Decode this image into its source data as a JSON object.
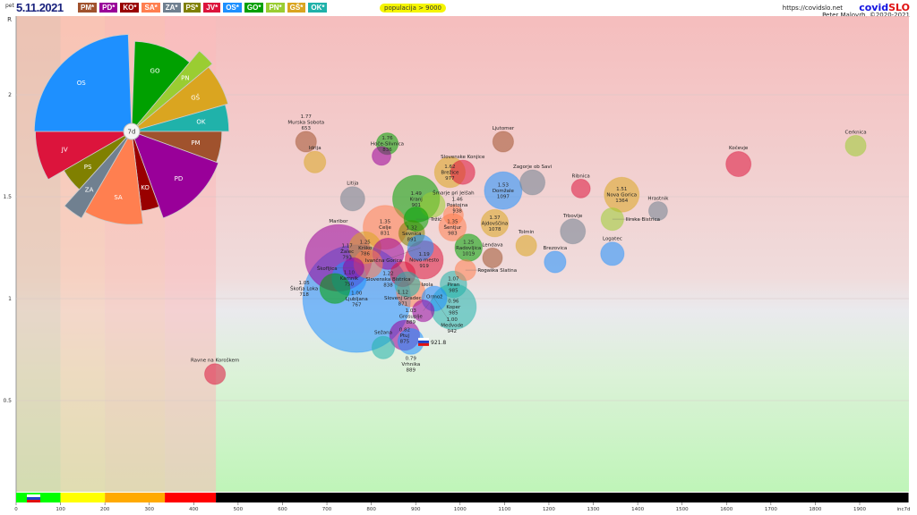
{
  "header": {
    "date_prefix": "pet",
    "date": "5.11.2021",
    "population_filter": "populacija > 9000",
    "url": "https://covidslo.net",
    "logo_a": "covid",
    "logo_b": "SLO",
    "author": "Peter Malovrh, ©2020-2021"
  },
  "parties": [
    {
      "code": "PM",
      "label": "PM*",
      "color": "#a0522d"
    },
    {
      "code": "PD",
      "label": "PD*",
      "color": "#990099"
    },
    {
      "code": "KO",
      "label": "KO*",
      "color": "#990000"
    },
    {
      "code": "SA",
      "label": "SA*",
      "color": "#ff7f50"
    },
    {
      "code": "ZA",
      "label": "ZA*",
      "color": "#708090"
    },
    {
      "code": "PS",
      "label": "PS*",
      "color": "#808000"
    },
    {
      "code": "JV",
      "label": "JV*",
      "color": "#dc143c"
    },
    {
      "code": "OS",
      "label": "OS*",
      "color": "#1e90ff"
    },
    {
      "code": "GO",
      "label": "GO*",
      "color": "#00a000"
    },
    {
      "code": "PN",
      "label": "PN*",
      "color": "#9acd32"
    },
    {
      "code": "GŠ",
      "label": "GŠ*",
      "color": "#daa520"
    },
    {
      "code": "OK",
      "label": "OK*",
      "color": "#20b2aa"
    }
  ],
  "pie": {
    "center_label": "7d",
    "sectors": [
      {
        "code": "GO",
        "start": 2,
        "end": 40,
        "radius": 0.9
      },
      {
        "code": "PN",
        "start": 40,
        "end": 50,
        "radius": 1.05
      },
      {
        "code": "GŠ",
        "start": 50,
        "end": 74,
        "radius": 1.0
      },
      {
        "code": "OK",
        "start": 74,
        "end": 90,
        "radius": 0.97
      },
      {
        "code": "PM",
        "start": 90,
        "end": 110,
        "radius": 0.9
      },
      {
        "code": "PD",
        "start": 110,
        "end": 160,
        "radius": 0.92
      },
      {
        "code": "KO",
        "start": 160,
        "end": 173,
        "radius": 0.8
      },
      {
        "code": "SA",
        "start": 173,
        "end": 210,
        "radius": 0.93
      },
      {
        "code": "ZA",
        "start": 210,
        "end": 222,
        "radius": 1.0
      },
      {
        "code": "PS",
        "start": 222,
        "end": 240,
        "radius": 0.78
      },
      {
        "code": "JV",
        "start": 240,
        "end": 270,
        "radius": 0.96
      },
      {
        "code": "OS",
        "start": 270,
        "end": 358,
        "radius": 0.97
      }
    ]
  },
  "chart_data": {
    "type": "scatter",
    "xlabel": "inc7d",
    "ylabel": "R",
    "xlim": [
      0,
      2010
    ],
    "ylim": [
      0,
      2.39
    ],
    "xticks": [
      0,
      100,
      200,
      300,
      400,
      500,
      600,
      700,
      800,
      900,
      1000,
      1100,
      1200,
      1300,
      1400,
      1500,
      1600,
      1700,
      1800,
      1900
    ],
    "yticks": [
      0.5,
      1,
      1.5,
      2
    ],
    "bands": [
      {
        "from": 0,
        "to": 100,
        "color": "#00ff00",
        "bg": "#e3c6ab"
      },
      {
        "from": 100,
        "to": 200,
        "color": "#ffff00",
        "bg": "#fcc8ad"
      },
      {
        "from": 200,
        "to": 335,
        "color": "#ffaa00",
        "bg": "#fcc0b0"
      },
      {
        "from": 335,
        "to": 450,
        "color": "#ff0000",
        "bg": "#fbbcbc"
      },
      {
        "from": 450,
        "to": 2010,
        "color": "#000000",
        "bg": "#f5b8b8"
      }
    ],
    "national": {
      "label": "921.8",
      "x": 921.8,
      "r": 0.79
    },
    "points": [
      {
        "name": "Murska Sobota",
        "x": 653,
        "r": 1.77,
        "pop": 11,
        "party": "PM",
        "values": true
      },
      {
        "name": "Idrija",
        "x": 673,
        "r": 1.67,
        "pop": 12,
        "party": "GŠ"
      },
      {
        "name": "Hoče-Slivnica",
        "x": 836,
        "r": 1.76,
        "pop": 12,
        "party": "GO",
        "values": true
      },
      {
        "name": "",
        "x": 823,
        "r": 1.7,
        "pop": 9,
        "party": "PD"
      },
      {
        "name": "Litija",
        "x": 758,
        "r": 1.49,
        "pop": 15,
        "party": "ZA"
      },
      {
        "name": "Slovenske Konjice",
        "x": 1006,
        "r": 1.62,
        "pop": 15,
        "party": "JV"
      },
      {
        "name": "Brežice",
        "x": 977,
        "r": 1.62,
        "pop": 24,
        "party": "GŠ",
        "values": true
      },
      {
        "name": "Ljutomer",
        "x": 1097,
        "r": 1.77,
        "pop": 11,
        "party": "PM"
      },
      {
        "name": "Zagorje ob Savi",
        "x": 1163,
        "r": 1.57,
        "pop": 16,
        "party": "ZA"
      },
      {
        "name": "Domžale",
        "x": 1097,
        "r": 1.53,
        "pop": 36,
        "party": "OS",
        "values": true
      },
      {
        "name": "Ribnica",
        "x": 1272,
        "r": 1.54,
        "pop": 9,
        "party": "JV"
      },
      {
        "name": "Nova Gorica",
        "x": 1364,
        "r": 1.51,
        "pop": 31,
        "party": "GŠ",
        "values": true
      },
      {
        "name": "Ilirska Bistrica",
        "x": 1343,
        "r": 1.39,
        "pop": 13,
        "party": "PN"
      },
      {
        "name": "Hrastnik",
        "x": 1446,
        "r": 1.43,
        "pop": 9,
        "party": "ZA"
      },
      {
        "name": "Kočevje",
        "x": 1627,
        "r": 1.66,
        "pop": 16,
        "party": "JV"
      },
      {
        "name": "Cerknica",
        "x": 1891,
        "r": 1.75,
        "pop": 11,
        "party": "PN"
      },
      {
        "name": "Trbovlje",
        "x": 1254,
        "r": 1.33,
        "pop": 16,
        "party": "ZA"
      },
      {
        "name": "Logatec",
        "x": 1343,
        "r": 1.22,
        "pop": 14,
        "party": "OS"
      },
      {
        "name": "Tolmin",
        "x": 1149,
        "r": 1.26,
        "pop": 11,
        "party": "GŠ"
      },
      {
        "name": "Brezovica",
        "x": 1214,
        "r": 1.18,
        "pop": 12,
        "party": "OS"
      },
      {
        "name": "Lendava",
        "x": 1073,
        "r": 1.2,
        "pop": 10,
        "party": "PM"
      },
      {
        "name": "Ajdovščina",
        "x": 1078,
        "r": 1.37,
        "pop": 19,
        "party": "GŠ",
        "values": true
      },
      {
        "name": "Radovljica",
        "x": 1019,
        "r": 1.25,
        "pop": 19,
        "party": "GO",
        "values": true
      },
      {
        "name": "Rogaška Slatina",
        "x": 1012,
        "r": 1.14,
        "pop": 11,
        "party": "SA"
      },
      {
        "name": "Šentjur",
        "x": 983,
        "r": 1.35,
        "pop": 19,
        "party": "SA",
        "values": true
      },
      {
        "name": "Šmarje pri Jelšah",
        "x": 985,
        "r": 1.41,
        "pop": 10,
        "party": "SA"
      },
      {
        "name": "Kranj",
        "x": 901,
        "r": 1.49,
        "pop": 56,
        "party": "GO",
        "values": true
      },
      {
        "name": "Postojna",
        "x": 938,
        "r": 1.46,
        "pop": 16,
        "party": "PN",
        "values": true
      },
      {
        "name": "Tržič",
        "x": 901,
        "r": 1.39,
        "pop": 15,
        "party": "GO"
      },
      {
        "name": "Sevnica",
        "x": 891,
        "r": 1.32,
        "pop": 17,
        "party": "PS",
        "values": true
      },
      {
        "name": "Celje",
        "x": 831,
        "r": 1.35,
        "pop": 49,
        "party": "SA",
        "values": true
      },
      {
        "name": "Maribor",
        "x": 726,
        "r": 1.2,
        "pop": 113,
        "party": "PD"
      },
      {
        "name": "Krško",
        "x": 786,
        "r": 1.25,
        "pop": 26,
        "party": "GŠ",
        "values": true
      },
      {
        "name": "Slovenska Bistrica",
        "x": 838,
        "r": 1.22,
        "pop": 25,
        "party": "PD",
        "values": true
      },
      {
        "name": "Ivančna Gorica",
        "x": 911,
        "r": 1.25,
        "pop": 17,
        "party": "OS"
      },
      {
        "name": "Novo mesto",
        "x": 919,
        "r": 1.19,
        "pop": 37,
        "party": "JV",
        "values": true
      },
      {
        "name": "Žalec",
        "x": 793,
        "r": 1.17,
        "pop": 21,
        "party": "SA",
        "values": true
      },
      {
        "name": "Škofljica",
        "x": 760,
        "r": 1.15,
        "pop": 11,
        "party": "PD"
      },
      {
        "name": "Ljubljana",
        "x": 767,
        "r": 1.0,
        "pop": 295,
        "party": "OS",
        "values": true
      },
      {
        "name": "Kamnik",
        "x": 750,
        "r": 1.1,
        "pop": 30,
        "party": "OS",
        "values": true
      },
      {
        "name": "Škofja Loka",
        "x": 718,
        "r": 1.05,
        "pop": 23,
        "party": "GO",
        "values": true
      },
      {
        "name": "Slovenj Gradec",
        "x": 871,
        "r": 1.12,
        "pop": 16,
        "party": "JV",
        "values": true
      },
      {
        "name": "Izola",
        "x": 881,
        "r": 1.07,
        "pop": 16,
        "party": "OK"
      },
      {
        "name": "Grosuplje",
        "x": 889,
        "r": 1.03,
        "pop": 21,
        "party": "SA",
        "values": true
      },
      {
        "name": "Medvode",
        "x": 942,
        "r": 1.0,
        "pop": 16,
        "party": "OS",
        "values": true
      },
      {
        "name": "Piran",
        "x": 985,
        "r": 1.07,
        "pop": 18,
        "party": "OK",
        "values": true
      },
      {
        "name": "Koper",
        "x": 985,
        "r": 0.96,
        "pop": 53,
        "party": "OK",
        "values": true
      },
      {
        "name": "Ormož",
        "x": 917,
        "r": 0.94,
        "pop": 12,
        "party": "PD"
      },
      {
        "name": "Sežana",
        "x": 827,
        "r": 0.76,
        "pop": 13,
        "party": "OK"
      },
      {
        "name": "Ptuj",
        "x": 875,
        "r": 0.82,
        "pop": 23,
        "party": "PD",
        "values": true
      },
      {
        "name": "Vrhnika",
        "x": 889,
        "r": 0.79,
        "pop": 17,
        "party": "OS",
        "values": true
      },
      {
        "name": "Ravne na Koroškem",
        "x": 448,
        "r": 0.63,
        "pop": 11,
        "party": "JV"
      }
    ]
  }
}
